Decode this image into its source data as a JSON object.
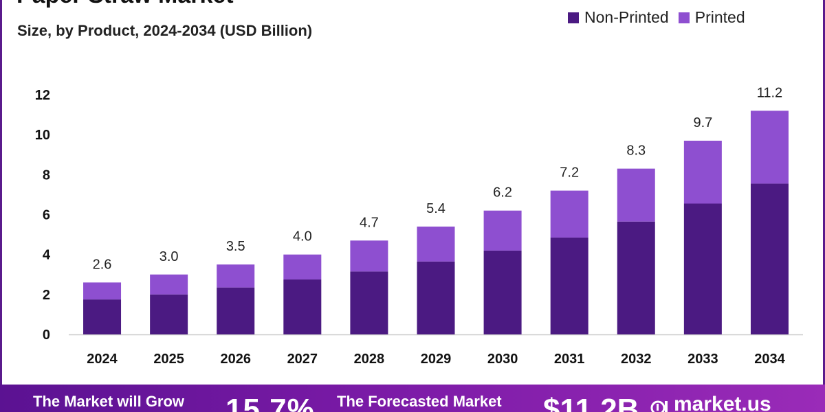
{
  "title": "Paper Straw Market",
  "subtitle": "Size, by Product, 2024-2034 (USD Billion)",
  "legend": {
    "non_printed": "Non-Printed",
    "printed": "Printed"
  },
  "colors": {
    "non_printed": "#4b1a82",
    "printed": "#8e4fd0",
    "axis": "#cccccc",
    "footer": "#6a1a9a"
  },
  "chart_data": {
    "type": "bar",
    "stacked": true,
    "title": "Paper Straw Market",
    "subtitle": "Size, by Product, 2024-2034 (USD Billion)",
    "categories": [
      "2024",
      "2025",
      "2026",
      "2027",
      "2028",
      "2029",
      "2030",
      "2031",
      "2032",
      "2033",
      "2034"
    ],
    "series": [
      {
        "name": "Non-Printed",
        "values": [
          1.75,
          2.0,
          2.35,
          2.75,
          3.15,
          3.65,
          4.2,
          4.85,
          5.65,
          6.55,
          7.55
        ]
      },
      {
        "name": "Printed",
        "values": [
          0.85,
          1.0,
          1.15,
          1.25,
          1.55,
          1.75,
          2.0,
          2.35,
          2.65,
          3.15,
          3.65
        ]
      }
    ],
    "totals": [
      "2.6",
      "3.0",
      "3.5",
      "4.0",
      "4.7",
      "5.4",
      "6.2",
      "7.2",
      "8.3",
      "9.7",
      "11.2"
    ],
    "yticks": [
      "0",
      "2",
      "4",
      "6",
      "8",
      "10",
      "12"
    ],
    "ylim": [
      0,
      12
    ],
    "grid": false,
    "legend_position": "top-right"
  },
  "footer": {
    "grow_text": "The Market will Grow",
    "cagr": "15.7%",
    "forecast_text": "The Forecasted Market",
    "forecast_value": "$11.2B",
    "brand": "market.us",
    "brand_icon": "market-us-logo-icon"
  }
}
